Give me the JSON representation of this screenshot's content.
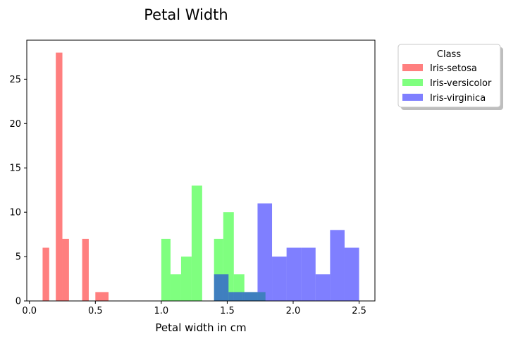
{
  "chart_data": {
    "type": "bar",
    "title": "Petal Width",
    "xlabel": "Petal width in cm",
    "ylabel": "",
    "xlim": [
      -0.02,
      2.62
    ],
    "ylim": [
      0,
      29.4
    ],
    "xticks": [
      0.0,
      0.5,
      1.0,
      1.5,
      2.0,
      2.5
    ],
    "xtick_labels": [
      "0.0",
      "0.5",
      "1.0",
      "1.5",
      "2.0",
      "2.5"
    ],
    "yticks": [
      0,
      5,
      10,
      15,
      20,
      25
    ],
    "ytick_labels": [
      "0",
      "5",
      "10",
      "15",
      "20",
      "25"
    ],
    "grid": false,
    "legend": {
      "title": "Class",
      "placement": "outside-top-right"
    },
    "series": [
      {
        "name": "Iris-setosa",
        "color": "#ff0000",
        "opacity": 0.5,
        "bins": [
          {
            "x0": 0.1,
            "x1": 0.15,
            "value": 6
          },
          {
            "x0": 0.2,
            "x1": 0.25,
            "value": 28
          },
          {
            "x0": 0.25,
            "x1": 0.3,
            "value": 7
          },
          {
            "x0": 0.4,
            "x1": 0.45,
            "value": 7
          },
          {
            "x0": 0.5,
            "x1": 0.6,
            "value": 1
          }
        ]
      },
      {
        "name": "Iris-versicolor",
        "color": "#00ff00",
        "opacity": 0.5,
        "bins": [
          {
            "x0": 1.0,
            "x1": 1.07,
            "value": 7
          },
          {
            "x0": 1.07,
            "x1": 1.15,
            "value": 3
          },
          {
            "x0": 1.15,
            "x1": 1.23,
            "value": 5
          },
          {
            "x0": 1.23,
            "x1": 1.31,
            "value": 13
          },
          {
            "x0": 1.4,
            "x1": 1.47,
            "value": 7
          },
          {
            "x0": 1.47,
            "x1": 1.55,
            "value": 10
          },
          {
            "x0": 1.55,
            "x1": 1.63,
            "value": 3
          },
          {
            "x0": 1.63,
            "x1": 1.79,
            "value": 1
          }
        ]
      },
      {
        "name": "Iris-virginica",
        "color": "#0000ff",
        "opacity": 0.5,
        "bins": [
          {
            "x0": 1.4,
            "x1": 1.51,
            "value": 3
          },
          {
            "x0": 1.51,
            "x1": 1.62,
            "value": 1
          },
          {
            "x0": 1.62,
            "x1": 1.73,
            "value": 1
          },
          {
            "x0": 1.73,
            "x1": 1.84,
            "value": 11
          },
          {
            "x0": 1.84,
            "x1": 1.95,
            "value": 5
          },
          {
            "x0": 1.95,
            "x1": 2.06,
            "value": 6
          },
          {
            "x0": 2.06,
            "x1": 2.17,
            "value": 6
          },
          {
            "x0": 2.17,
            "x1": 2.28,
            "value": 3
          },
          {
            "x0": 2.28,
            "x1": 2.39,
            "value": 8
          },
          {
            "x0": 2.39,
            "x1": 2.5,
            "value": 6
          }
        ]
      }
    ]
  }
}
